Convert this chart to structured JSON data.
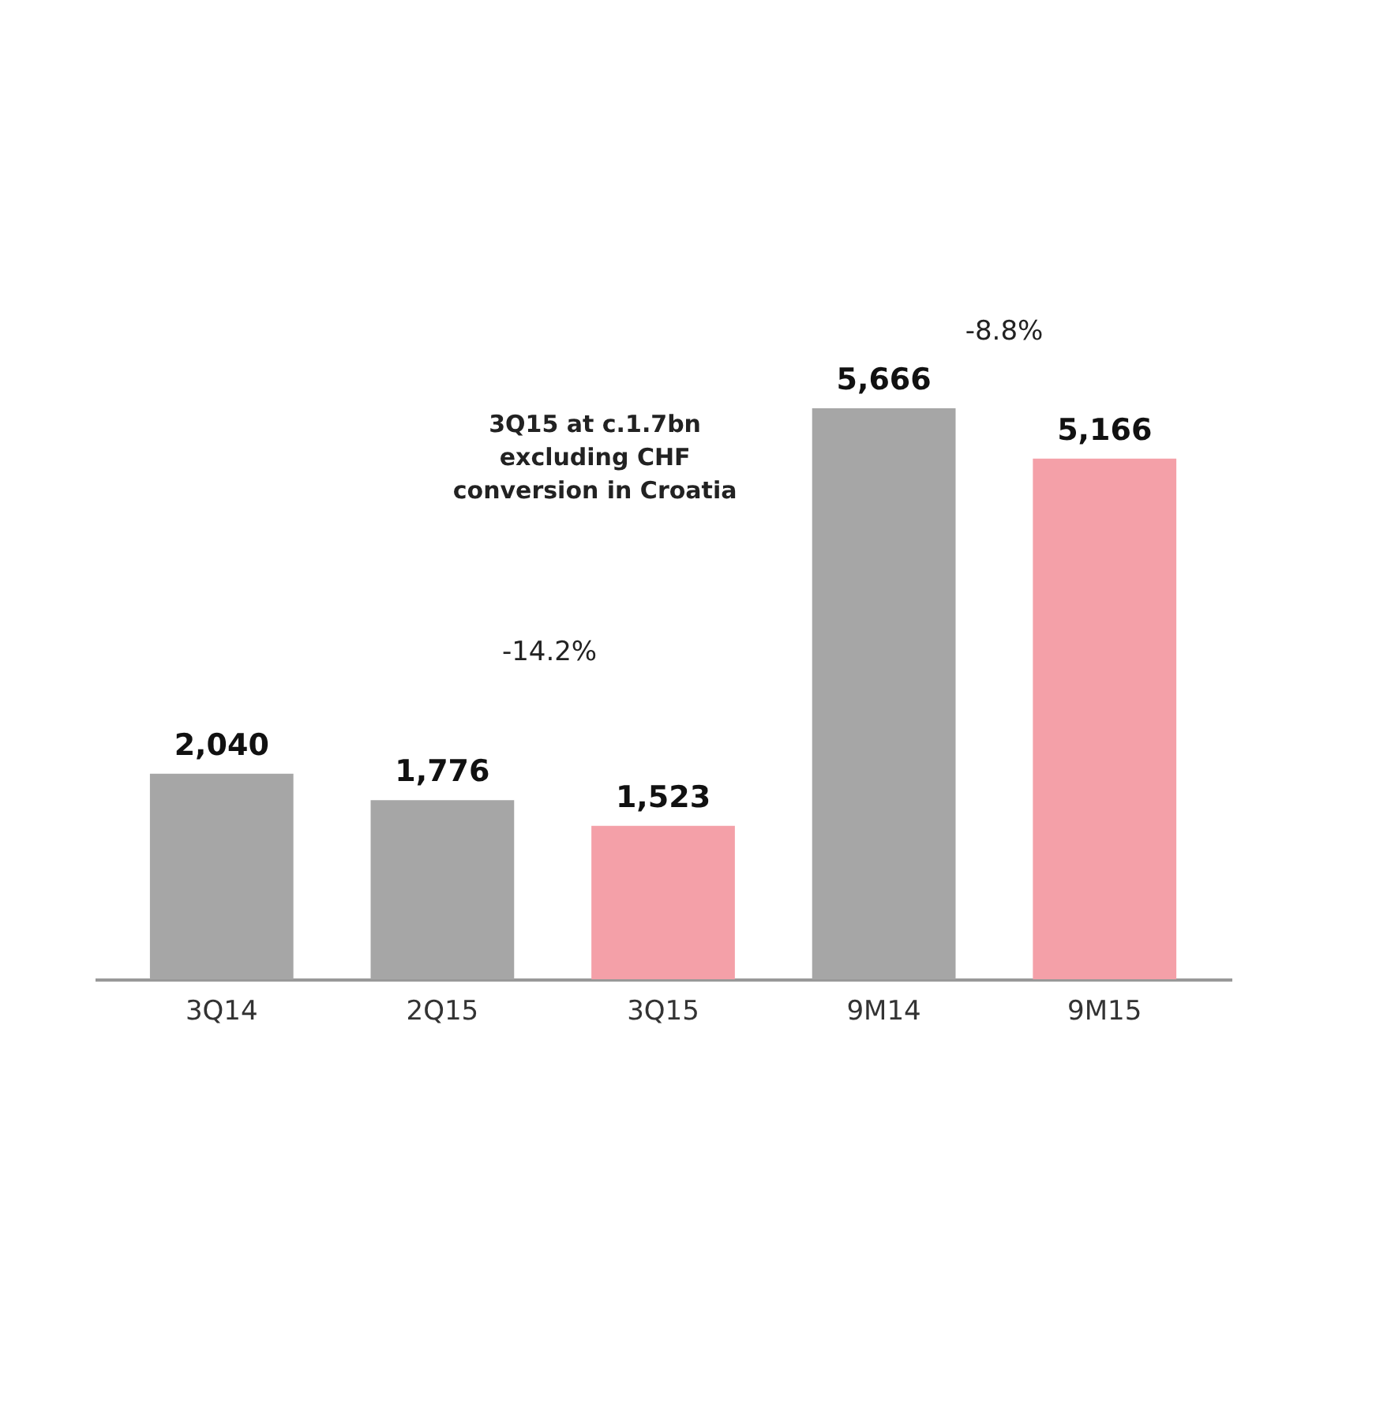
{
  "chart_data": {
    "type": "bar",
    "categories": [
      "3Q14",
      "2Q15",
      "3Q15",
      "9M14",
      "9M15"
    ],
    "values": [
      2040,
      1776,
      1523,
      5666,
      5166
    ],
    "colors": [
      "#a6a6a6",
      "#a6a6a6",
      "#f4a0a8",
      "#a6a6a6",
      "#f4a0a8"
    ],
    "value_labels": [
      "2,040",
      "1,776",
      "1,523",
      "5,666",
      "5,166"
    ],
    "annotations": [
      "3Q15 at c.1.7bn excluding CHF conversion in Croatia",
      "-14.2%",
      "-8.8%"
    ]
  }
}
